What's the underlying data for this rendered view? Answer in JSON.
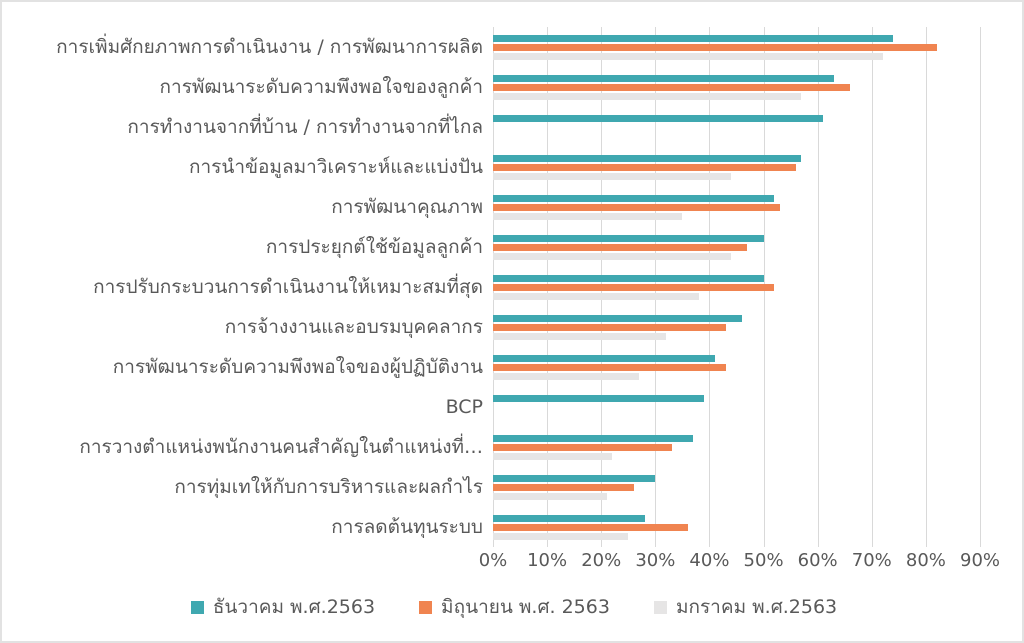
{
  "chart_data": {
    "type": "bar",
    "orientation": "horizontal",
    "title": "",
    "xlabel": "",
    "ylabel": "",
    "xlim": [
      0,
      90
    ],
    "x_axis_ticks": [
      "0%",
      "10%",
      "20%",
      "30%",
      "40%",
      "50%",
      "60%",
      "70%",
      "80%",
      "90%"
    ],
    "grid": true,
    "legend_position": "bottom",
    "categories": [
      "การเพิ่มศักยภาพการดำเนินงาน / การพัฒนาการผลิต",
      "การพัฒนาระดับความพึงพอใจของลูกค้า",
      "การทำงานจากที่บ้าน / การทำงานจากที่ไกล",
      "การนำข้อมูลมาวิเคราะห์และแบ่งปัน",
      "การพัฒนาคุณภาพ",
      "การประยุกต์ใช้ข้อมูลลูกค้า",
      "การปรับกระบวนการดำเนินงานให้เหมาะสมที่สุด",
      "การจ้างงานและอบรมบุคคลากร",
      "การพัฒนาระดับความพึงพอใจของผู้ปฏิบัติงาน",
      "BCP",
      "การวางตำแหน่งพนักงานคนสำคัญในตำแหน่งที่…",
      "การทุ่มเทให้กับการบริหารและผลกำไร",
      "การลดต้นทุนระบบ"
    ],
    "series": [
      {
        "name": "ธันวาคม พ.ศ.2563",
        "color": "#3fa8b0",
        "values": [
          74,
          63,
          61,
          57,
          52,
          50,
          50,
          46,
          41,
          39,
          37,
          30,
          28
        ]
      },
      {
        "name": "มิถุนายน พ.ศ. 2563",
        "color": "#f08450",
        "values": [
          82,
          66,
          null,
          56,
          53,
          47,
          52,
          43,
          43,
          null,
          33,
          26,
          36
        ]
      },
      {
        "name": "มกราคม พ.ศ.2563",
        "color": "#e6e5e5",
        "values": [
          72,
          57,
          null,
          44,
          35,
          44,
          38,
          32,
          27,
          null,
          22,
          21,
          25
        ]
      }
    ]
  },
  "style": {
    "gridline_color": "#d9d9d9",
    "text_color": "#595959",
    "background_color": "#ffffff",
    "border_color": "#e2e2e2"
  }
}
